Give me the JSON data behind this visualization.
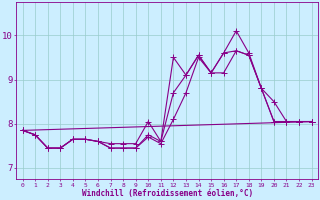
{
  "xlabel": "Windchill (Refroidissement éolien,°C)",
  "bg_color": "#cceeff",
  "line_color": "#880088",
  "grid_color": "#99cccc",
  "text_color": "#880088",
  "xlim": [
    -0.5,
    23.5
  ],
  "ylim": [
    6.75,
    10.75
  ],
  "yticks": [
    7,
    8,
    9,
    10
  ],
  "xticks": [
    0,
    1,
    2,
    3,
    4,
    5,
    6,
    7,
    8,
    9,
    10,
    11,
    12,
    13,
    14,
    15,
    16,
    17,
    18,
    19,
    20,
    21,
    22,
    23
  ],
  "line1_x": [
    0,
    1,
    2,
    3,
    4,
    5,
    6,
    7,
    8,
    9,
    10,
    11,
    12,
    13,
    14,
    15,
    16,
    17,
    18,
    19,
    20,
    21,
    22,
    23
  ],
  "line1_y": [
    7.85,
    7.75,
    7.45,
    7.45,
    7.65,
    7.65,
    7.6,
    7.45,
    7.45,
    7.45,
    7.75,
    7.6,
    9.5,
    9.1,
    9.55,
    9.15,
    9.6,
    10.1,
    9.6,
    8.8,
    8.05,
    8.05,
    8.05,
    8.05
  ],
  "line2_x": [
    0,
    1,
    2,
    3,
    4,
    5,
    6,
    7,
    8,
    9,
    10,
    11,
    12,
    13,
    14,
    15,
    16,
    17,
    18,
    19,
    20,
    21,
    22,
    23
  ],
  "line2_y": [
    7.85,
    7.75,
    7.45,
    7.45,
    7.65,
    7.65,
    7.6,
    7.55,
    7.55,
    7.55,
    8.05,
    7.6,
    8.7,
    9.1,
    9.55,
    9.15,
    9.15,
    9.65,
    9.55,
    8.8,
    8.5,
    8.05,
    8.05,
    8.05
  ],
  "line3_x": [
    0,
    1,
    2,
    3,
    4,
    5,
    6,
    7,
    8,
    9,
    10,
    11,
    12,
    13,
    14,
    15,
    16,
    17,
    18,
    19,
    20,
    21,
    22,
    23
  ],
  "line3_y": [
    7.85,
    7.75,
    7.45,
    7.45,
    7.65,
    7.65,
    7.6,
    7.45,
    7.45,
    7.45,
    7.7,
    7.55,
    8.1,
    8.7,
    9.5,
    9.15,
    9.6,
    9.65,
    9.55,
    8.8,
    8.05,
    8.05,
    8.05,
    8.05
  ],
  "line4_x": [
    0,
    23
  ],
  "line4_y": [
    7.85,
    8.05
  ]
}
